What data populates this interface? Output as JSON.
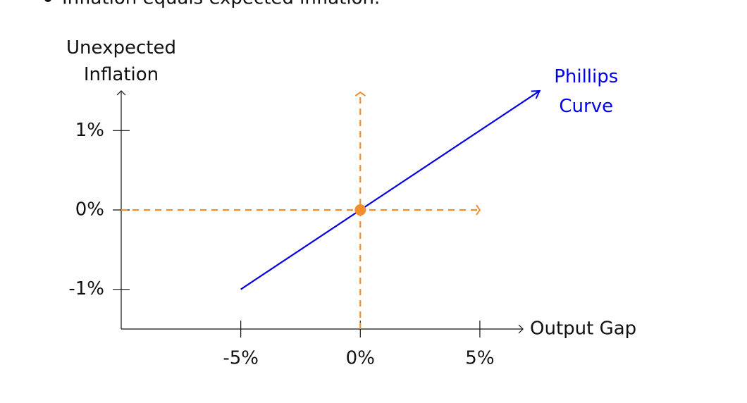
{
  "bullet": "Inflation equals expected inflation.",
  "chart_data": {
    "type": "line",
    "x_label": "Output Gap",
    "y_label": "Unexpected Inflation",
    "x": [
      -5,
      0,
      7.5
    ],
    "series": [
      {
        "name": "Phillips Curve",
        "color": "#0000e6",
        "values": [
          -1,
          0,
          1.5
        ]
      }
    ],
    "point": {
      "x": 0,
      "y": 0,
      "color": "#f28e2b"
    },
    "xlim": [
      -10,
      6.8
    ],
    "ylim": [
      -1.5,
      1.5
    ],
    "xticks": [
      {
        "value": -5,
        "label": "-5%"
      },
      {
        "value": 0,
        "label": "0%"
      },
      {
        "value": 5,
        "label": "5%"
      }
    ],
    "yticks": [
      {
        "value": -1,
        "label": "-1%"
      },
      {
        "value": 0,
        "label": "0%"
      },
      {
        "value": 1,
        "label": "1%"
      }
    ]
  }
}
